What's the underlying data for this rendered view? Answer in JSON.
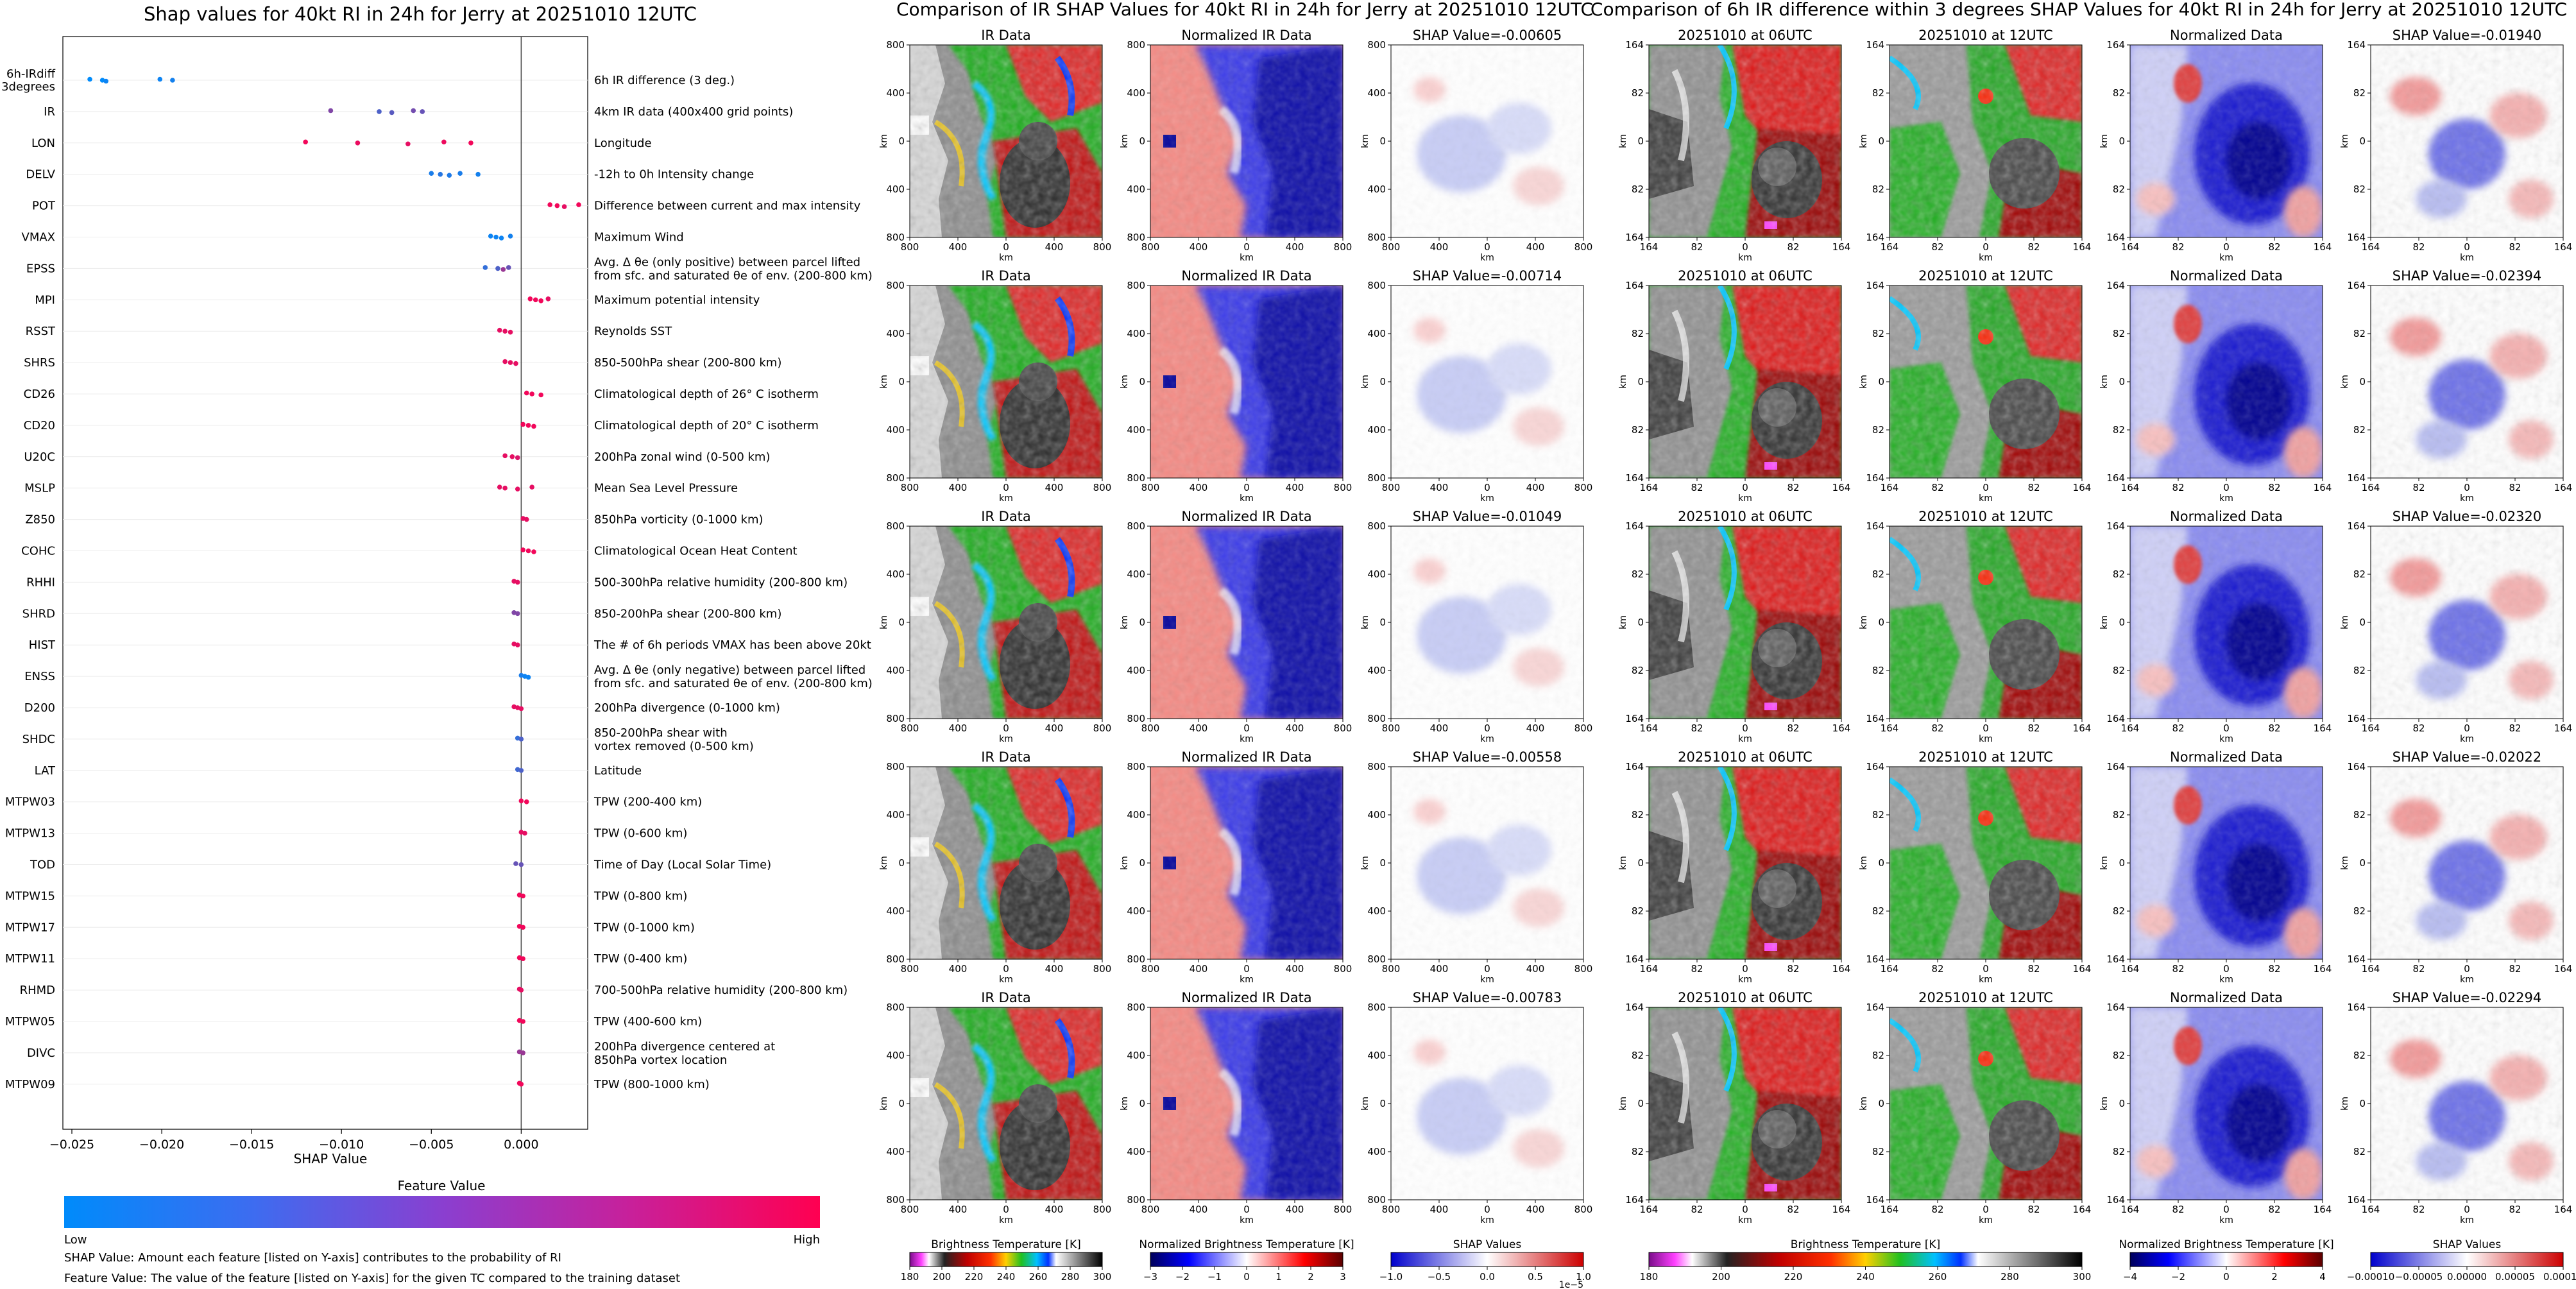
{
  "figure": {
    "title_left": "Shap values for 40kt RI in 24h for Jerry at 20251010 12UTC",
    "title_mid": "Comparison of IR SHAP Values for 40kt RI in 24h for Jerry at 20251010 12UTC",
    "title_right": "Comparison of 6h IR difference within 3 degrees SHAP Values for 40kt RI in 24h for Jerry at 20251010 12UTC"
  },
  "chart_data": [
    {
      "type": "scatter",
      "title": "Shap values for 40kt RI in 24h for Jerry at 20251010 12UTC",
      "xlabel": "SHAP Value",
      "xlim": [
        -0.0255,
        0.0037
      ],
      "xticks": [
        -0.025,
        -0.02,
        -0.015,
        -0.01,
        -0.005,
        0.0
      ],
      "xtick_labels": [
        "−0.025",
        "−0.020",
        "−0.015",
        "−0.010",
        "−0.005",
        "0.000"
      ],
      "features": [
        {
          "name": "6h-IRdiff\n3degrees",
          "desc": "6h IR difference (3 deg.)",
          "points": [
            {
              "x": -0.024,
              "v": 0.0
            },
            {
              "x": -0.0233,
              "v": 0.0
            },
            {
              "x": -0.0231,
              "v": 0.05
            },
            {
              "x": -0.0201,
              "v": 0.05
            },
            {
              "x": -0.0194,
              "v": 0.08
            }
          ]
        },
        {
          "name": "IR",
          "desc": "4km IR data (400x400 grid points)",
          "points": [
            {
              "x": -0.0106,
              "v": 0.5
            },
            {
              "x": -0.0079,
              "v": 0.3
            },
            {
              "x": -0.0072,
              "v": 0.35
            },
            {
              "x": -0.006,
              "v": 0.45
            },
            {
              "x": -0.0055,
              "v": 0.4
            }
          ]
        },
        {
          "name": "LON",
          "desc": "Longitude",
          "points": [
            {
              "x": -0.012,
              "v": 0.95
            },
            {
              "x": -0.0091,
              "v": 0.92
            },
            {
              "x": -0.0063,
              "v": 0.9
            },
            {
              "x": -0.0043,
              "v": 0.93
            },
            {
              "x": -0.0028,
              "v": 0.95
            }
          ]
        },
        {
          "name": "DELV",
          "desc": "-12h to 0h Intensity change",
          "points": [
            {
              "x": -0.005,
              "v": 0.1
            },
            {
              "x": -0.0045,
              "v": 0.15
            },
            {
              "x": -0.004,
              "v": 0.12
            },
            {
              "x": -0.0034,
              "v": 0.1
            },
            {
              "x": -0.0024,
              "v": 0.08
            }
          ]
        },
        {
          "name": "POT",
          "desc": "Difference between current and max intensity",
          "points": [
            {
              "x": 0.0016,
              "v": 0.95
            },
            {
              "x": 0.002,
              "v": 0.95
            },
            {
              "x": 0.0024,
              "v": 0.9
            },
            {
              "x": 0.0032,
              "v": 0.95
            }
          ]
        },
        {
          "name": "VMAX",
          "desc": "Maximum Wind",
          "points": [
            {
              "x": -0.0017,
              "v": 0.05
            },
            {
              "x": -0.0014,
              "v": 0.05
            },
            {
              "x": -0.0011,
              "v": 0.05
            },
            {
              "x": -0.0006,
              "v": 0.08
            }
          ]
        },
        {
          "name": "EPSS",
          "desc": "Avg. Δ θe (only positive) between parcel lifted\nfrom sfc. and saturated θe of env. (200-800 km)",
          "points": [
            {
              "x": -0.002,
              "v": 0.2
            },
            {
              "x": -0.0013,
              "v": 0.3
            },
            {
              "x": -0.001,
              "v": 0.6
            },
            {
              "x": -0.0007,
              "v": 0.4
            }
          ]
        },
        {
          "name": "MPI",
          "desc": "Maximum potential intensity",
          "points": [
            {
              "x": 0.0005,
              "v": 0.95
            },
            {
              "x": 0.0008,
              "v": 0.95
            },
            {
              "x": 0.0011,
              "v": 0.95
            },
            {
              "x": 0.0015,
              "v": 0.9
            }
          ]
        },
        {
          "name": "RSST",
          "desc": "Reynolds SST",
          "points": [
            {
              "x": -0.0012,
              "v": 0.9
            },
            {
              "x": -0.0009,
              "v": 0.9
            },
            {
              "x": -0.0006,
              "v": 0.9
            }
          ]
        },
        {
          "name": "SHRS",
          "desc": "850-500hPa shear (200-800 km)",
          "points": [
            {
              "x": -0.0009,
              "v": 0.9
            },
            {
              "x": -0.0006,
              "v": 0.9
            },
            {
              "x": -0.0003,
              "v": 0.9
            }
          ]
        },
        {
          "name": "CD26",
          "desc": "Climatological depth of 26° C isotherm",
          "points": [
            {
              "x": 0.0003,
              "v": 0.95
            },
            {
              "x": 0.0006,
              "v": 0.95
            },
            {
              "x": 0.0011,
              "v": 0.95
            }
          ]
        },
        {
          "name": "CD20",
          "desc": "Climatological depth of 20° C isotherm",
          "points": [
            {
              "x": 0.0001,
              "v": 0.95
            },
            {
              "x": 0.0004,
              "v": 0.95
            },
            {
              "x": 0.0007,
              "v": 0.95
            }
          ]
        },
        {
          "name": "U20C",
          "desc": "200hPa zonal wind (0-500 km)",
          "points": [
            {
              "x": -0.0009,
              "v": 0.9
            },
            {
              "x": -0.0005,
              "v": 0.9
            },
            {
              "x": -0.0002,
              "v": 0.85
            }
          ]
        },
        {
          "name": "MSLP",
          "desc": "Mean Sea Level Pressure",
          "points": [
            {
              "x": -0.0012,
              "v": 0.9
            },
            {
              "x": -0.0009,
              "v": 0.9
            },
            {
              "x": -0.0002,
              "v": 0.9
            },
            {
              "x": 0.0006,
              "v": 0.9
            }
          ]
        },
        {
          "name": "Z850",
          "desc": "850hPa vorticity (0-1000 km)",
          "points": [
            {
              "x": 0.0001,
              "v": 0.9
            },
            {
              "x": 0.0003,
              "v": 0.9
            }
          ]
        },
        {
          "name": "COHC",
          "desc": "Climatological Ocean Heat Content",
          "points": [
            {
              "x": 0.0001,
              "v": 0.95
            },
            {
              "x": 0.0004,
              "v": 0.95
            },
            {
              "x": 0.0007,
              "v": 0.95
            }
          ]
        },
        {
          "name": "RHHI",
          "desc": "500-300hPa relative humidity (200-800 km)",
          "points": [
            {
              "x": -0.0004,
              "v": 0.9
            },
            {
              "x": -0.0002,
              "v": 0.9
            }
          ]
        },
        {
          "name": "SHRD",
          "desc": "850-200hPa shear (200-800 km)",
          "points": [
            {
              "x": -0.0004,
              "v": 0.5
            },
            {
              "x": -0.0002,
              "v": 0.5
            }
          ]
        },
        {
          "name": "HIST",
          "desc": "The # of 6h periods VMAX has been above 20kt",
          "points": [
            {
              "x": -0.0004,
              "v": 0.9
            },
            {
              "x": -0.0002,
              "v": 0.9
            }
          ]
        },
        {
          "name": "ENSS",
          "desc": "Avg. Δ θe (only negative) between parcel lifted\nfrom sfc. and saturated θe of env. (200-800 km)",
          "points": [
            {
              "x": 0.0,
              "v": 0.1
            },
            {
              "x": 0.0002,
              "v": 0.05
            },
            {
              "x": 0.0004,
              "v": 0.05
            }
          ]
        },
        {
          "name": "D200",
          "desc": "200hPa divergence (0-1000 km)",
          "points": [
            {
              "x": -0.0004,
              "v": 0.9
            },
            {
              "x": -0.0002,
              "v": 0.9
            },
            {
              "x": 0.0,
              "v": 0.9
            }
          ]
        },
        {
          "name": "SHDC",
          "desc": "850-200hPa shear with\nvortex removed (0-500 km)",
          "points": [
            {
              "x": -0.0002,
              "v": 0.2
            },
            {
              "x": 0.0,
              "v": 0.3
            }
          ]
        },
        {
          "name": "LAT",
          "desc": "Latitude",
          "points": [
            {
              "x": -0.0002,
              "v": 0.25
            },
            {
              "x": 0.0,
              "v": 0.3
            }
          ]
        },
        {
          "name": "MTPW03",
          "desc": "TPW (200-400 km)",
          "points": [
            {
              "x": 0.0,
              "v": 0.95
            },
            {
              "x": 0.0003,
              "v": 0.95
            }
          ]
        },
        {
          "name": "MTPW13",
          "desc": "TPW (0-600 km)",
          "points": [
            {
              "x": 0.0,
              "v": 0.9
            },
            {
              "x": 0.0002,
              "v": 0.9
            }
          ]
        },
        {
          "name": "TOD",
          "desc": "Time of Day (Local Solar Time)",
          "points": [
            {
              "x": -0.0003,
              "v": 0.4
            },
            {
              "x": 0.0,
              "v": 0.4
            }
          ]
        },
        {
          "name": "MTPW15",
          "desc": "TPW (0-800 km)",
          "points": [
            {
              "x": -0.0001,
              "v": 0.95
            },
            {
              "x": 0.0001,
              "v": 0.95
            }
          ]
        },
        {
          "name": "MTPW17",
          "desc": "TPW (0-1000 km)",
          "points": [
            {
              "x": -0.0001,
              "v": 0.95
            },
            {
              "x": 0.0001,
              "v": 0.95
            }
          ]
        },
        {
          "name": "MTPW11",
          "desc": "TPW (0-400 km)",
          "points": [
            {
              "x": -0.0001,
              "v": 0.95
            },
            {
              "x": 0.0001,
              "v": 0.95
            }
          ]
        },
        {
          "name": "RHMD",
          "desc": "700-500hPa relative humidity (200-800 km)",
          "points": [
            {
              "x": -0.0001,
              "v": 0.9
            },
            {
              "x": 0.0,
              "v": 0.9
            }
          ]
        },
        {
          "name": "MTPW05",
          "desc": "TPW (400-600 km)",
          "points": [
            {
              "x": -0.0001,
              "v": 0.95
            },
            {
              "x": 0.0001,
              "v": 0.95
            }
          ]
        },
        {
          "name": "DIVC",
          "desc": "200hPa divergence centered at\n850hPa vortex location",
          "points": [
            {
              "x": -0.0001,
              "v": 0.6
            },
            {
              "x": 0.0001,
              "v": 0.6
            }
          ]
        },
        {
          "name": "MTPW09",
          "desc": "TPW (800-1000 km)",
          "points": [
            {
              "x": -0.0001,
              "v": 0.95
            },
            {
              "x": 0.0,
              "v": 0.95
            }
          ]
        }
      ],
      "colorbar": {
        "label": "Feature Value",
        "low": "Low",
        "high": "High",
        "low_color": "#008bfb",
        "high_color": "#ff0051"
      },
      "footnotes": [
        "SHAP Value: Amount each feature [listed on Y-axis] contributes to the probability of RI",
        "Feature Value: The value of the feature [listed on Y-axis] for the given TC compared to the training dataset"
      ]
    },
    {
      "type": "heatmap",
      "title": "Comparison of IR SHAP Values for 40kt RI in 24h for Jerry at 20251010 12UTC",
      "panel_titles": [
        "IR Data",
        "Normalized IR Data",
        "SHAP Value"
      ],
      "shap_values": [
        "-0.00605",
        "-0.00714",
        "-0.01049",
        "-0.00558",
        "-0.00783"
      ],
      "shap_prefix": "SHAP Value=",
      "axis_label": "km",
      "ticks": [
        "800",
        "400",
        "0",
        "400",
        "800"
      ],
      "colorbars": [
        {
          "label": "Brightness Temperature [K]",
          "ticks": [
            "180",
            "200",
            "220",
            "240",
            "260",
            "280",
            "300"
          ]
        },
        {
          "label": "Normalized Brightness Temperature [K]",
          "ticks": [
            "−3",
            "−2",
            "−1",
            "0",
            "1",
            "2",
            "3"
          ]
        },
        {
          "label": "SHAP Values",
          "ticks": [
            "−1.0",
            "−0.5",
            "0.0",
            "0.5",
            "1.0"
          ],
          "offset": "1e−5"
        }
      ]
    },
    {
      "type": "heatmap",
      "title": "Comparison of 6h IR difference within 3 degrees SHAP Values for 40kt RI in 24h for Jerry at 20251010 12UTC",
      "panel_titles": [
        "20251010 at 06UTC",
        "20251010 at 12UTC",
        "Normalized Data",
        "SHAP Value"
      ],
      "shap_values": [
        "-0.01940",
        "-0.02394",
        "-0.02320",
        "-0.02022",
        "-0.02294"
      ],
      "shap_prefix": "SHAP Value=",
      "axis_label": "km",
      "ticks": [
        "164",
        "82",
        "0",
        "82",
        "164"
      ],
      "colorbars": [
        {
          "label": "Brightness Temperature [K]",
          "ticks": [
            "180",
            "200",
            "220",
            "240",
            "260",
            "280",
            "300"
          ]
        },
        {
          "label": "Normalized Brightness Temperature [K]",
          "ticks": [
            "−4",
            "−2",
            "0",
            "2",
            "4"
          ]
        },
        {
          "label": "SHAP Values",
          "ticks": [
            "−0.00010",
            "−0.00005",
            "0.00000",
            "0.00005",
            "0.00010"
          ]
        }
      ]
    }
  ]
}
